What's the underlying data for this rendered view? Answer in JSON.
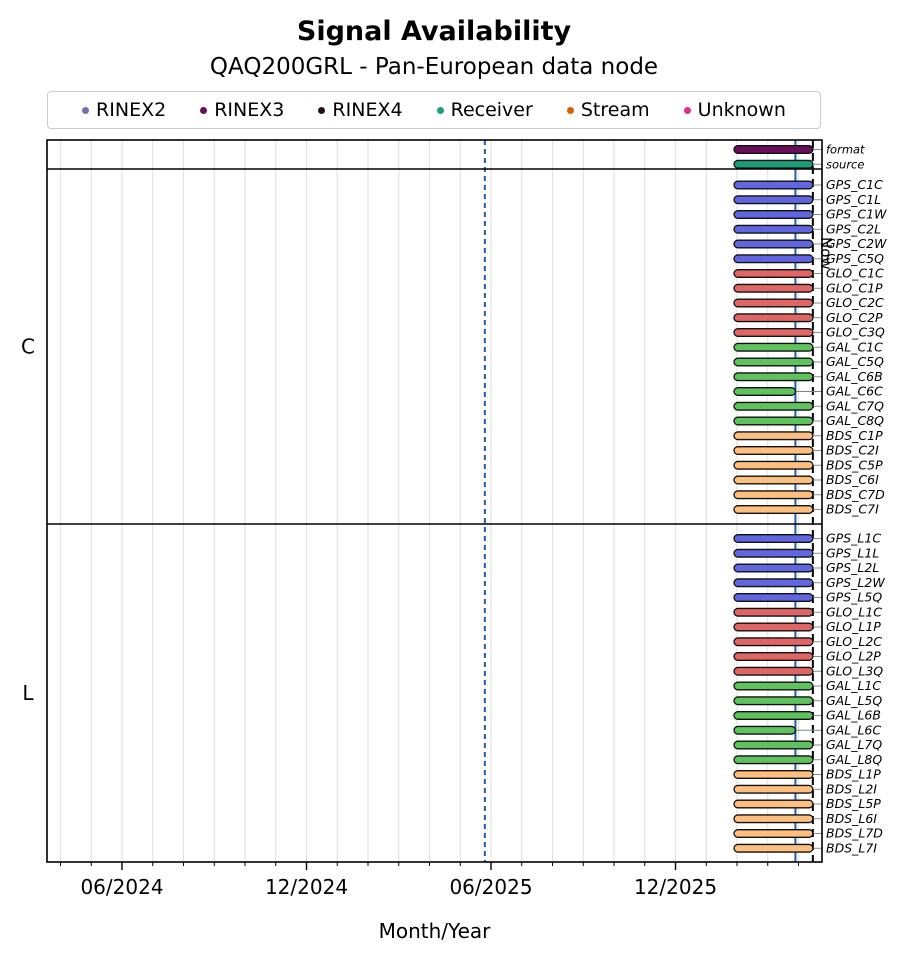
{
  "chart_data": {
    "type": "timeline",
    "title": "Signal Availability",
    "subtitle": "QAQ200GRL - Pan-European data node",
    "xlabel": "Month/Year",
    "x_ticks": [
      "06/2024",
      "12/2024",
      "06/2025",
      "12/2025"
    ],
    "x_range": [
      "2024-03",
      "2026-05"
    ],
    "grid": "vertical, monthly",
    "legend_position": "top",
    "legend": [
      {
        "name": "RINEX2",
        "color": "#7570b3"
      },
      {
        "name": "RINEX3",
        "color": "#6a0f5b"
      },
      {
        "name": "RINEX4",
        "color": "#2a0a1e"
      },
      {
        "name": "Receiver",
        "color": "#1b9e77"
      },
      {
        "name": "Stream",
        "color": "#d95f02"
      },
      {
        "name": "Unknown",
        "color": "#e7298a"
      }
    ],
    "reference_lines": [
      {
        "date": "2025-05-25",
        "style": "dashed",
        "color": "#1f5ea8"
      },
      {
        "date": "2026-03-28",
        "style": "solid",
        "color": "#1f5ea8"
      },
      {
        "date": "2026-04-15",
        "style": "dashed",
        "color": "#000000",
        "label": "Now"
      }
    ],
    "panels": [
      {
        "name": "",
        "rows": [
          {
            "label": "format",
            "color": "#6a0f5b",
            "start": "2026-03-01",
            "end": "2026-04-15"
          },
          {
            "label": "source",
            "color": "#1b9e77",
            "start": "2026-03-01",
            "end": "2026-04-15"
          }
        ]
      },
      {
        "name": "C",
        "rows": [
          {
            "label": "GPS_C1C",
            "color": "#6166e0",
            "start": "2026-03-01",
            "end": "2026-04-15"
          },
          {
            "label": "GPS_C1L",
            "color": "#6166e0",
            "start": "2026-03-01",
            "end": "2026-04-15"
          },
          {
            "label": "GPS_C1W",
            "color": "#6166e0",
            "start": "2026-03-01",
            "end": "2026-04-15"
          },
          {
            "label": "GPS_C2L",
            "color": "#6166e0",
            "start": "2026-03-01",
            "end": "2026-04-15"
          },
          {
            "label": "GPS_C2W",
            "color": "#6166e0",
            "start": "2026-03-01",
            "end": "2026-04-15"
          },
          {
            "label": "GPS_C5Q",
            "color": "#6166e0",
            "start": "2026-03-01",
            "end": "2026-04-15"
          },
          {
            "label": "GLO_C1C",
            "color": "#e06666",
            "start": "2026-03-01",
            "end": "2026-04-15"
          },
          {
            "label": "GLO_C1P",
            "color": "#e06666",
            "start": "2026-03-01",
            "end": "2026-04-15"
          },
          {
            "label": "GLO_C2C",
            "color": "#e06666",
            "start": "2026-03-01",
            "end": "2026-04-15"
          },
          {
            "label": "GLO_C2P",
            "color": "#e06666",
            "start": "2026-03-01",
            "end": "2026-04-15"
          },
          {
            "label": "GLO_C3Q",
            "color": "#e06666",
            "start": "2026-03-01",
            "end": "2026-04-15"
          },
          {
            "label": "GAL_C1C",
            "color": "#5fc25f",
            "start": "2026-03-01",
            "end": "2026-04-15"
          },
          {
            "label": "GAL_C5Q",
            "color": "#5fc25f",
            "start": "2026-03-01",
            "end": "2026-04-15"
          },
          {
            "label": "GAL_C6B",
            "color": "#5fc25f",
            "start": "2026-03-01",
            "end": "2026-04-15"
          },
          {
            "label": "GAL_C6C",
            "color": "#5fc25f",
            "start": "2026-03-01",
            "end": "2026-03-28"
          },
          {
            "label": "GAL_C7Q",
            "color": "#5fc25f",
            "start": "2026-03-01",
            "end": "2026-04-15"
          },
          {
            "label": "GAL_C8Q",
            "color": "#5fc25f",
            "start": "2026-03-01",
            "end": "2026-04-15"
          },
          {
            "label": "BDS_C1P",
            "color": "#fdbf80",
            "start": "2026-03-01",
            "end": "2026-04-15"
          },
          {
            "label": "BDS_C2I",
            "color": "#fdbf80",
            "start": "2026-03-01",
            "end": "2026-04-15"
          },
          {
            "label": "BDS_C5P",
            "color": "#fdbf80",
            "start": "2026-03-01",
            "end": "2026-04-15"
          },
          {
            "label": "BDS_C6I",
            "color": "#fdbf80",
            "start": "2026-03-01",
            "end": "2026-04-15"
          },
          {
            "label": "BDS_C7D",
            "color": "#fdbf80",
            "start": "2026-03-01",
            "end": "2026-04-15"
          },
          {
            "label": "BDS_C7I",
            "color": "#fdbf80",
            "start": "2026-03-01",
            "end": "2026-04-15"
          }
        ]
      },
      {
        "name": "L",
        "rows": [
          {
            "label": "GPS_L1C",
            "color": "#6166e0",
            "start": "2026-03-01",
            "end": "2026-04-15"
          },
          {
            "label": "GPS_L1L",
            "color": "#6166e0",
            "start": "2026-03-01",
            "end": "2026-04-15"
          },
          {
            "label": "GPS_L2L",
            "color": "#6166e0",
            "start": "2026-03-01",
            "end": "2026-04-15"
          },
          {
            "label": "GPS_L2W",
            "color": "#6166e0",
            "start": "2026-03-01",
            "end": "2026-04-15"
          },
          {
            "label": "GPS_L5Q",
            "color": "#6166e0",
            "start": "2026-03-01",
            "end": "2026-04-15"
          },
          {
            "label": "GLO_L1C",
            "color": "#e06666",
            "start": "2026-03-01",
            "end": "2026-04-15"
          },
          {
            "label": "GLO_L1P",
            "color": "#e06666",
            "start": "2026-03-01",
            "end": "2026-04-15"
          },
          {
            "label": "GLO_L2C",
            "color": "#e06666",
            "start": "2026-03-01",
            "end": "2026-04-15"
          },
          {
            "label": "GLO_L2P",
            "color": "#e06666",
            "start": "2026-03-01",
            "end": "2026-04-15"
          },
          {
            "label": "GLO_L3Q",
            "color": "#e06666",
            "start": "2026-03-01",
            "end": "2026-04-15"
          },
          {
            "label": "GAL_L1C",
            "color": "#5fc25f",
            "start": "2026-03-01",
            "end": "2026-04-15"
          },
          {
            "label": "GAL_L5Q",
            "color": "#5fc25f",
            "start": "2026-03-01",
            "end": "2026-04-15"
          },
          {
            "label": "GAL_L6B",
            "color": "#5fc25f",
            "start": "2026-03-01",
            "end": "2026-04-15"
          },
          {
            "label": "GAL_L6C",
            "color": "#5fc25f",
            "start": "2026-03-01",
            "end": "2026-03-28"
          },
          {
            "label": "GAL_L7Q",
            "color": "#5fc25f",
            "start": "2026-03-01",
            "end": "2026-04-15"
          },
          {
            "label": "GAL_L8Q",
            "color": "#5fc25f",
            "start": "2026-03-01",
            "end": "2026-04-15"
          },
          {
            "label": "BDS_L1P",
            "color": "#fdbf80",
            "start": "2026-03-01",
            "end": "2026-04-15"
          },
          {
            "label": "BDS_L2I",
            "color": "#fdbf80",
            "start": "2026-03-01",
            "end": "2026-04-15"
          },
          {
            "label": "BDS_L5P",
            "color": "#fdbf80",
            "start": "2026-03-01",
            "end": "2026-04-15"
          },
          {
            "label": "BDS_L6I",
            "color": "#fdbf80",
            "start": "2026-03-01",
            "end": "2026-04-15"
          },
          {
            "label": "BDS_L7D",
            "color": "#fdbf80",
            "start": "2026-03-01",
            "end": "2026-04-15"
          },
          {
            "label": "BDS_L7I",
            "color": "#fdbf80",
            "start": "2026-03-01",
            "end": "2026-04-15"
          }
        ]
      }
    ]
  }
}
